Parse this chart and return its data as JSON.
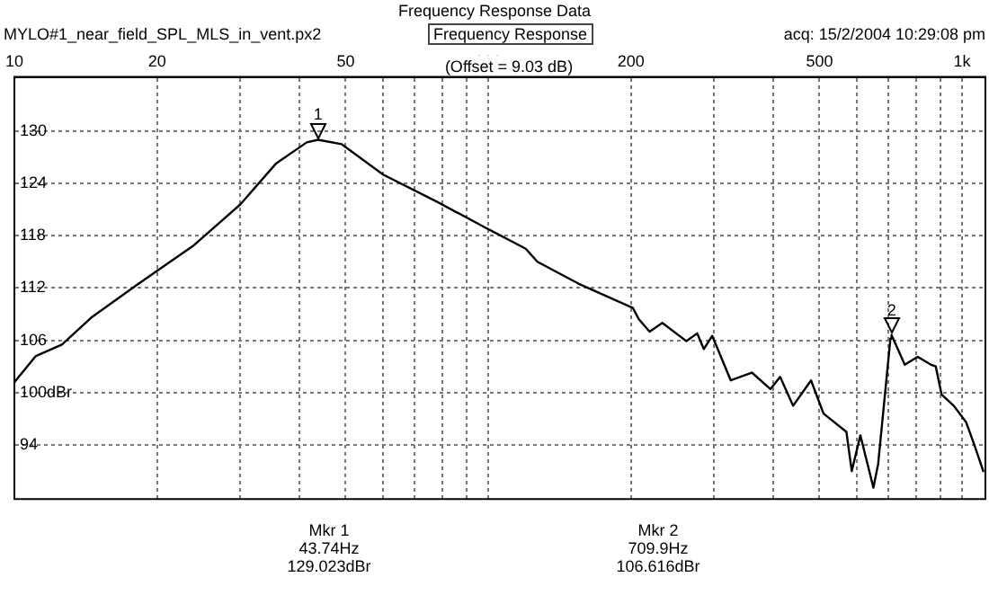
{
  "chart_data": {
    "type": "line",
    "title": "Frequency Response Data",
    "subtitle": "Frequency Response",
    "annotations": [
      "MYLO#1_near_field_SPL_MLS_in_vent.px2",
      "acq: 15/2/2004 10:29:08 pm",
      "(Offset = 9.03 dB)",
      "Mkr 1\n43.74Hz\n129.023dBr",
      "Mkr 2\n709.9Hz\n106.616dBr",
      {
        "text": "1",
        "x": 43.74,
        "y": 129.023
      },
      {
        "text": "2",
        "x": 709.9,
        "y": 106.616
      }
    ],
    "log": "x",
    "grid": true,
    "legend": false,
    "marker": "none",
    "line_style": "solid",
    "xlim": [
      10,
      1120
    ],
    "xticks": [
      10,
      20,
      {
        "value": 30,
        "label": null
      },
      {
        "value": 40,
        "label": null
      },
      50,
      {
        "value": 60,
        "label": null
      },
      {
        "value": 70,
        "label": null
      },
      {
        "value": 80,
        "label": null
      },
      {
        "value": 90,
        "label": null
      },
      100,
      200,
      {
        "value": 300,
        "label": null
      },
      {
        "value": 400,
        "label": null
      },
      500,
      {
        "value": 600,
        "label": null
      },
      {
        "value": 700,
        "label": null
      },
      {
        "value": 800,
        "label": null
      },
      {
        "value": 900,
        "label": null
      },
      {
        "value": 1000,
        "label": "1k"
      }
    ],
    "ylim": [
      87.8,
      136.2
    ],
    "yticks": [
      94,
      {
        "value": 100,
        "label": "100dBr"
      },
      106,
      112,
      118,
      124,
      130
    ],
    "series": [
      {
        "color": "#000000",
        "x": [
          10,
          11.1,
          12.6,
          14.6,
          18.3,
          23.8,
          30,
          35.7,
          41.4,
          43.74,
          49,
          60,
          77.9,
          98,
          120,
          127,
          155,
          202,
          208,
          219,
          233,
          262,
          276,
          285,
          297,
          325,
          360,
          394,
          413,
          440,
          480,
          510,
          570,
          585,
          610,
          650,
          665,
          706,
          709.9,
          757,
          806,
          860,
          880,
          905,
          960,
          1020,
          1060,
          1110
        ],
        "values": [
          101.2,
          104.2,
          105.5,
          108.7,
          112.5,
          116.8,
          121.6,
          126.3,
          128.7,
          129.0,
          128.5,
          125,
          121.9,
          119,
          116.5,
          115,
          112.5,
          109.7,
          108.4,
          107,
          108,
          105.9,
          106.8,
          105,
          106.5,
          101.4,
          102.3,
          100.4,
          101.8,
          98.5,
          101.4,
          97.6,
          95.5,
          91,
          95.1,
          89.1,
          91.8,
          106.2,
          106.6,
          103.2,
          104.1,
          103.2,
          103,
          99.8,
          98.5,
          96.6,
          94.1,
          90.9
        ]
      }
    ]
  }
}
